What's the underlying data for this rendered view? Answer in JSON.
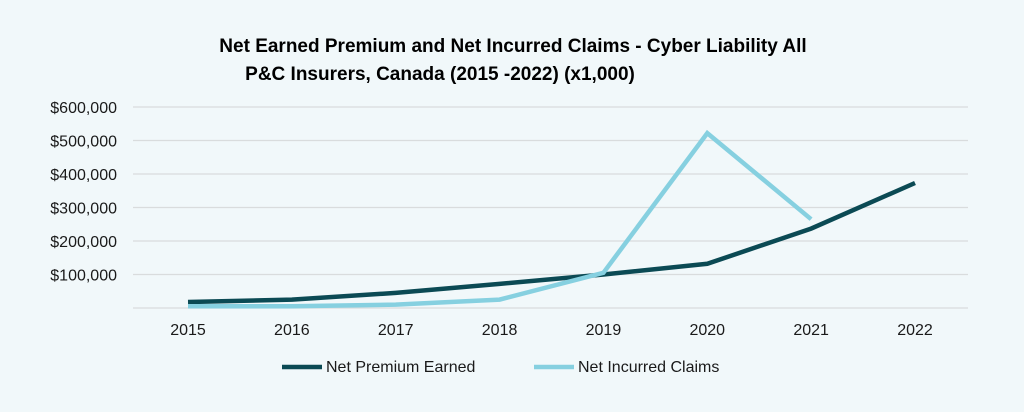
{
  "chart_data": {
    "type": "line",
    "title": "Net Earned Premium and Net Incurred Claims  - Cyber Liability All",
    "title_line2": "P&C Insurers, Canada (2015 -2022) (x1,000)",
    "xlabel": "",
    "ylabel": "",
    "x": [
      "2015",
      "2016",
      "2017",
      "2018",
      "2019",
      "2020",
      "2021",
      "2022"
    ],
    "ylim": [
      0,
      600000
    ],
    "yticks": [
      100000,
      200000,
      300000,
      400000,
      500000,
      600000
    ],
    "ytick_labels": [
      "$100,000",
      "$200,000",
      "$300,000",
      "$400,000",
      "$500,000",
      "$600,000"
    ],
    "grid": true,
    "legend_position": "bottom",
    "series": [
      {
        "name": "Net Premium Earned",
        "color": "#0b4a54",
        "values": [
          18000,
          25000,
          45000,
          72000,
          100000,
          132000,
          237000,
          373000
        ]
      },
      {
        "name": "Net Incurred Claims",
        "color": "#86d0e0",
        "values": [
          5000,
          5000,
          10000,
          25000,
          105000,
          522000,
          265000,
          null
        ]
      }
    ]
  }
}
